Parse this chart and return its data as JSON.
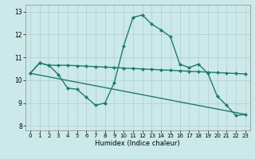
{
  "xlabel": "Humidex (Indice chaleur)",
  "xlim": [
    -0.5,
    23.5
  ],
  "ylim": [
    7.8,
    13.3
  ],
  "yticks": [
    8,
    9,
    10,
    11,
    12,
    13
  ],
  "xticks": [
    0,
    1,
    2,
    3,
    4,
    5,
    6,
    7,
    8,
    9,
    10,
    11,
    12,
    13,
    14,
    15,
    16,
    17,
    18,
    19,
    20,
    21,
    22,
    23
  ],
  "background_color": "#cce9e9",
  "grid_color": "#b0cccc",
  "line_color": "#1e7a70",
  "line1_x": [
    0,
    1,
    2,
    3,
    4,
    5,
    6,
    7,
    8,
    9,
    10,
    11,
    12,
    13,
    14,
    15,
    16,
    17,
    18,
    19,
    20,
    21,
    22,
    23
  ],
  "line1_y": [
    10.3,
    10.75,
    10.65,
    10.25,
    9.65,
    9.6,
    9.25,
    8.9,
    9.0,
    9.9,
    11.5,
    12.75,
    12.85,
    12.45,
    12.2,
    11.9,
    10.7,
    10.55,
    10.7,
    10.3,
    9.3,
    8.9,
    8.45,
    8.5
  ],
  "line2_x": [
    0,
    1,
    2,
    3,
    4,
    5,
    6,
    7,
    8,
    9,
    10,
    11,
    12,
    13,
    14,
    15,
    16,
    17,
    18,
    19,
    20,
    21,
    22,
    23
  ],
  "line2_y": [
    10.3,
    10.75,
    10.65,
    10.65,
    10.65,
    10.63,
    10.61,
    10.59,
    10.57,
    10.55,
    10.53,
    10.51,
    10.49,
    10.47,
    10.45,
    10.43,
    10.41,
    10.39,
    10.37,
    10.35,
    10.33,
    10.31,
    10.29,
    10.27
  ],
  "line3_x": [
    0,
    23
  ],
  "line3_y": [
    10.3,
    8.5
  ],
  "marker_size": 2.5,
  "linewidth": 1.0
}
